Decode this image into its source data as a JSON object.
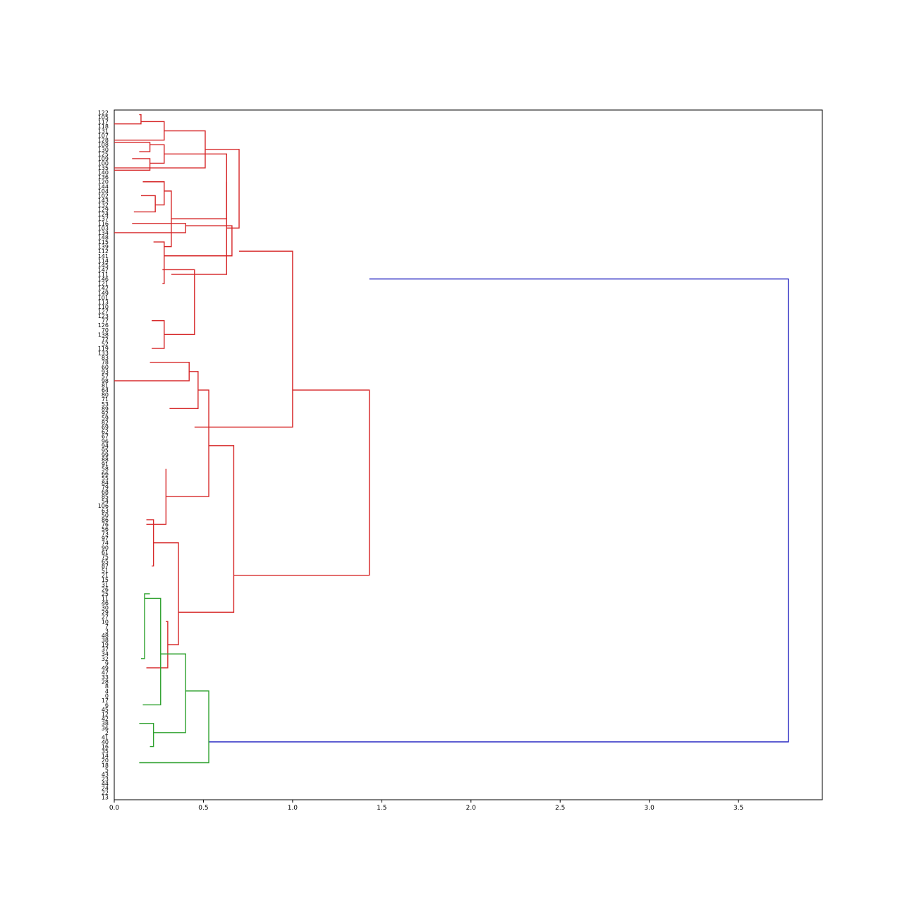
{
  "chart_data": {
    "type": "dendrogram",
    "orientation": "left",
    "title": "",
    "xlabel": "",
    "ylabel": "",
    "xlim": [
      0,
      3.97
    ],
    "xticks": [
      0.0,
      0.5,
      1.0,
      1.5,
      2.0,
      2.5,
      3.0,
      3.5
    ],
    "xtick_labels": [
      "0.0",
      "0.5",
      "1.0",
      "1.5",
      "2.0",
      "2.5",
      "3.0",
      "3.5"
    ],
    "grid": false,
    "colors": {
      "cluster_red": "#d62728",
      "cluster_green": "#2ca02c",
      "root": "#1f1fbf"
    },
    "leaves": [
      "122",
      "105",
      "117",
      "118",
      "131",
      "107",
      "128",
      "108",
      "130",
      "125",
      "109",
      "100",
      "135",
      "140",
      "136",
      "120",
      "144",
      "104",
      "102",
      "143",
      "132",
      "129",
      "124",
      "137",
      "116",
      "103",
      "134",
      "148",
      "115",
      "139",
      "112",
      "141",
      "114",
      "145",
      "147",
      "111",
      "146",
      "121",
      "142",
      "149",
      "101",
      "113",
      "110",
      "127",
      "123",
      "77",
      "126",
      "70",
      "138",
      "72",
      "52",
      "119",
      "133",
      "83",
      "78",
      "60",
      "93",
      "57",
      "98",
      "81",
      "64",
      "80",
      "71",
      "53",
      "89",
      "92",
      "59",
      "82",
      "69",
      "62",
      "67",
      "96",
      "94",
      "95",
      "99",
      "88",
      "91",
      "58",
      "66",
      "55",
      "84",
      "79",
      "68",
      "85",
      "54",
      "106",
      "63",
      "50",
      "86",
      "76",
      "56",
      "73",
      "97",
      "74",
      "90",
      "61",
      "75",
      "65",
      "87",
      "51",
      "21",
      "15",
      "31",
      "26",
      "25",
      "11",
      "46",
      "30",
      "29",
      "27",
      "10",
      "7",
      "3",
      "48",
      "38",
      "19",
      "37",
      "34",
      "32",
      "9",
      "49",
      "47",
      "33",
      "28",
      "8",
      "4",
      "0",
      "17",
      "6",
      "45",
      "12",
      "42",
      "38",
      "36",
      "2",
      "41",
      "40",
      "16",
      "35",
      "14",
      "20",
      "18",
      "5",
      "43",
      "23",
      "44",
      "24",
      "22",
      "13"
    ],
    "merges": [
      {
        "height": 3.78,
        "children": [
          [
            36,
            1.43
          ],
          [
            136,
            0.53
          ]
        ],
        "color": "root"
      },
      {
        "height": 1.43,
        "children": [
          [
            60,
            1.0
          ],
          [
            100,
            0.67
          ]
        ],
        "color": "cluster_red"
      },
      {
        "height": 1.0,
        "children": [
          [
            30,
            0.7
          ],
          [
            68,
            0.45
          ]
        ],
        "color": "cluster_red"
      },
      {
        "height": 0.7,
        "children": [
          [
            8,
            0.51
          ],
          [
            25,
            0.63
          ]
        ],
        "color": "cluster_red"
      },
      {
        "height": 0.51,
        "children": [
          [
            4,
            0.28
          ],
          [
            12,
            0.0
          ]
        ],
        "color": "cluster_red"
      },
      {
        "height": 0.28,
        "children": [
          [
            2,
            0.15
          ],
          [
            6,
            0.0
          ]
        ],
        "color": "cluster_red"
      },
      {
        "height": 0.15,
        "children": [
          [
            0.5,
            0.14
          ],
          [
            2.5,
            0.0
          ]
        ],
        "color": "cluster_red"
      },
      {
        "height": 0.63,
        "children": [
          [
            15,
            0.63
          ],
          [
            35,
            0.32
          ]
        ],
        "color": "cluster_red"
      },
      {
        "height": 0.63,
        "children": [
          [
            9,
            0.28
          ],
          [
            23,
            0.32
          ]
        ],
        "color": "cluster_red"
      },
      {
        "height": 0.28,
        "children": [
          [
            7,
            0.2
          ],
          [
            11,
            0.2
          ]
        ],
        "color": "cluster_red"
      },
      {
        "height": 0.2,
        "children": [
          [
            6.5,
            0.0
          ],
          [
            8.5,
            0.14
          ]
        ],
        "color": "cluster_red"
      },
      {
        "height": 0.2,
        "children": [
          [
            10,
            0.1
          ],
          [
            12.5,
            0.0
          ]
        ],
        "color": "cluster_red"
      },
      {
        "height": 0.32,
        "children": [
          [
            17,
            0.28
          ],
          [
            29,
            0.28
          ]
        ],
        "color": "cluster_red"
      },
      {
        "height": 0.28,
        "children": [
          [
            15,
            0.16
          ],
          [
            20,
            0.23
          ]
        ],
        "color": "cluster_red"
      },
      {
        "height": 0.23,
        "children": [
          [
            18,
            0.15
          ],
          [
            21.5,
            0.11
          ]
        ],
        "color": "cluster_red"
      },
      {
        "height": 0.66,
        "children": [
          [
            24.5,
            0.4
          ],
          [
            31,
            0.28
          ]
        ],
        "color": "cluster_red"
      },
      {
        "height": 0.4,
        "children": [
          [
            24,
            0.1
          ],
          [
            26,
            0.0
          ]
        ],
        "color": "cluster_red"
      },
      {
        "height": 0.28,
        "children": [
          [
            28,
            0.22
          ],
          [
            37,
            0.27
          ]
        ],
        "color": "cluster_red"
      },
      {
        "height": 0.45,
        "children": [
          [
            34,
            0.27
          ],
          [
            48,
            0.28
          ]
        ],
        "color": "cluster_red"
      },
      {
        "height": 0.28,
        "children": [
          [
            45,
            0.21
          ],
          [
            51,
            0.21
          ]
        ],
        "color": "cluster_red"
      },
      {
        "height": 0.67,
        "children": [
          [
            72,
            0.53
          ],
          [
            108,
            0.36
          ]
        ],
        "color": "cluster_red"
      },
      {
        "height": 0.53,
        "children": [
          [
            60,
            0.47
          ],
          [
            83,
            0.29
          ]
        ],
        "color": "cluster_red"
      },
      {
        "height": 0.47,
        "children": [
          [
            56,
            0.42
          ],
          [
            64,
            0.31
          ]
        ],
        "color": "cluster_red"
      },
      {
        "height": 0.42,
        "children": [
          [
            54,
            0.2
          ],
          [
            58,
            0.0
          ]
        ],
        "color": "cluster_red"
      },
      {
        "height": 0.29,
        "children": [
          [
            77,
            0.29
          ],
          [
            89,
            0.18
          ]
        ],
        "color": "cluster_red"
      },
      {
        "height": 0.36,
        "children": [
          [
            93,
            0.22
          ],
          [
            115,
            0.3
          ]
        ],
        "color": "cluster_red"
      },
      {
        "height": 0.22,
        "children": [
          [
            88,
            0.18
          ],
          [
            98,
            0.21
          ]
        ],
        "color": "cluster_red"
      },
      {
        "height": 0.3,
        "children": [
          [
            110,
            0.29
          ],
          [
            120,
            0.18
          ]
        ],
        "color": "cluster_red"
      },
      {
        "height": 0.53,
        "children": [
          [
            125,
            0.4
          ],
          [
            140.5,
            0.14
          ]
        ],
        "color": "cluster_green"
      },
      {
        "height": 0.4,
        "children": [
          [
            117,
            0.26
          ],
          [
            134,
            0.22
          ]
        ],
        "color": "cluster_green"
      },
      {
        "height": 0.26,
        "children": [
          [
            105,
            0.17
          ],
          [
            128,
            0.16
          ]
        ],
        "color": "cluster_green"
      },
      {
        "height": 0.17,
        "children": [
          [
            104,
            0.2
          ],
          [
            118,
            0.15
          ]
        ],
        "color": "cluster_green"
      },
      {
        "height": 0.22,
        "children": [
          [
            132,
            0.14
          ],
          [
            137,
            0.2
          ]
        ],
        "color": "cluster_green"
      }
    ]
  }
}
